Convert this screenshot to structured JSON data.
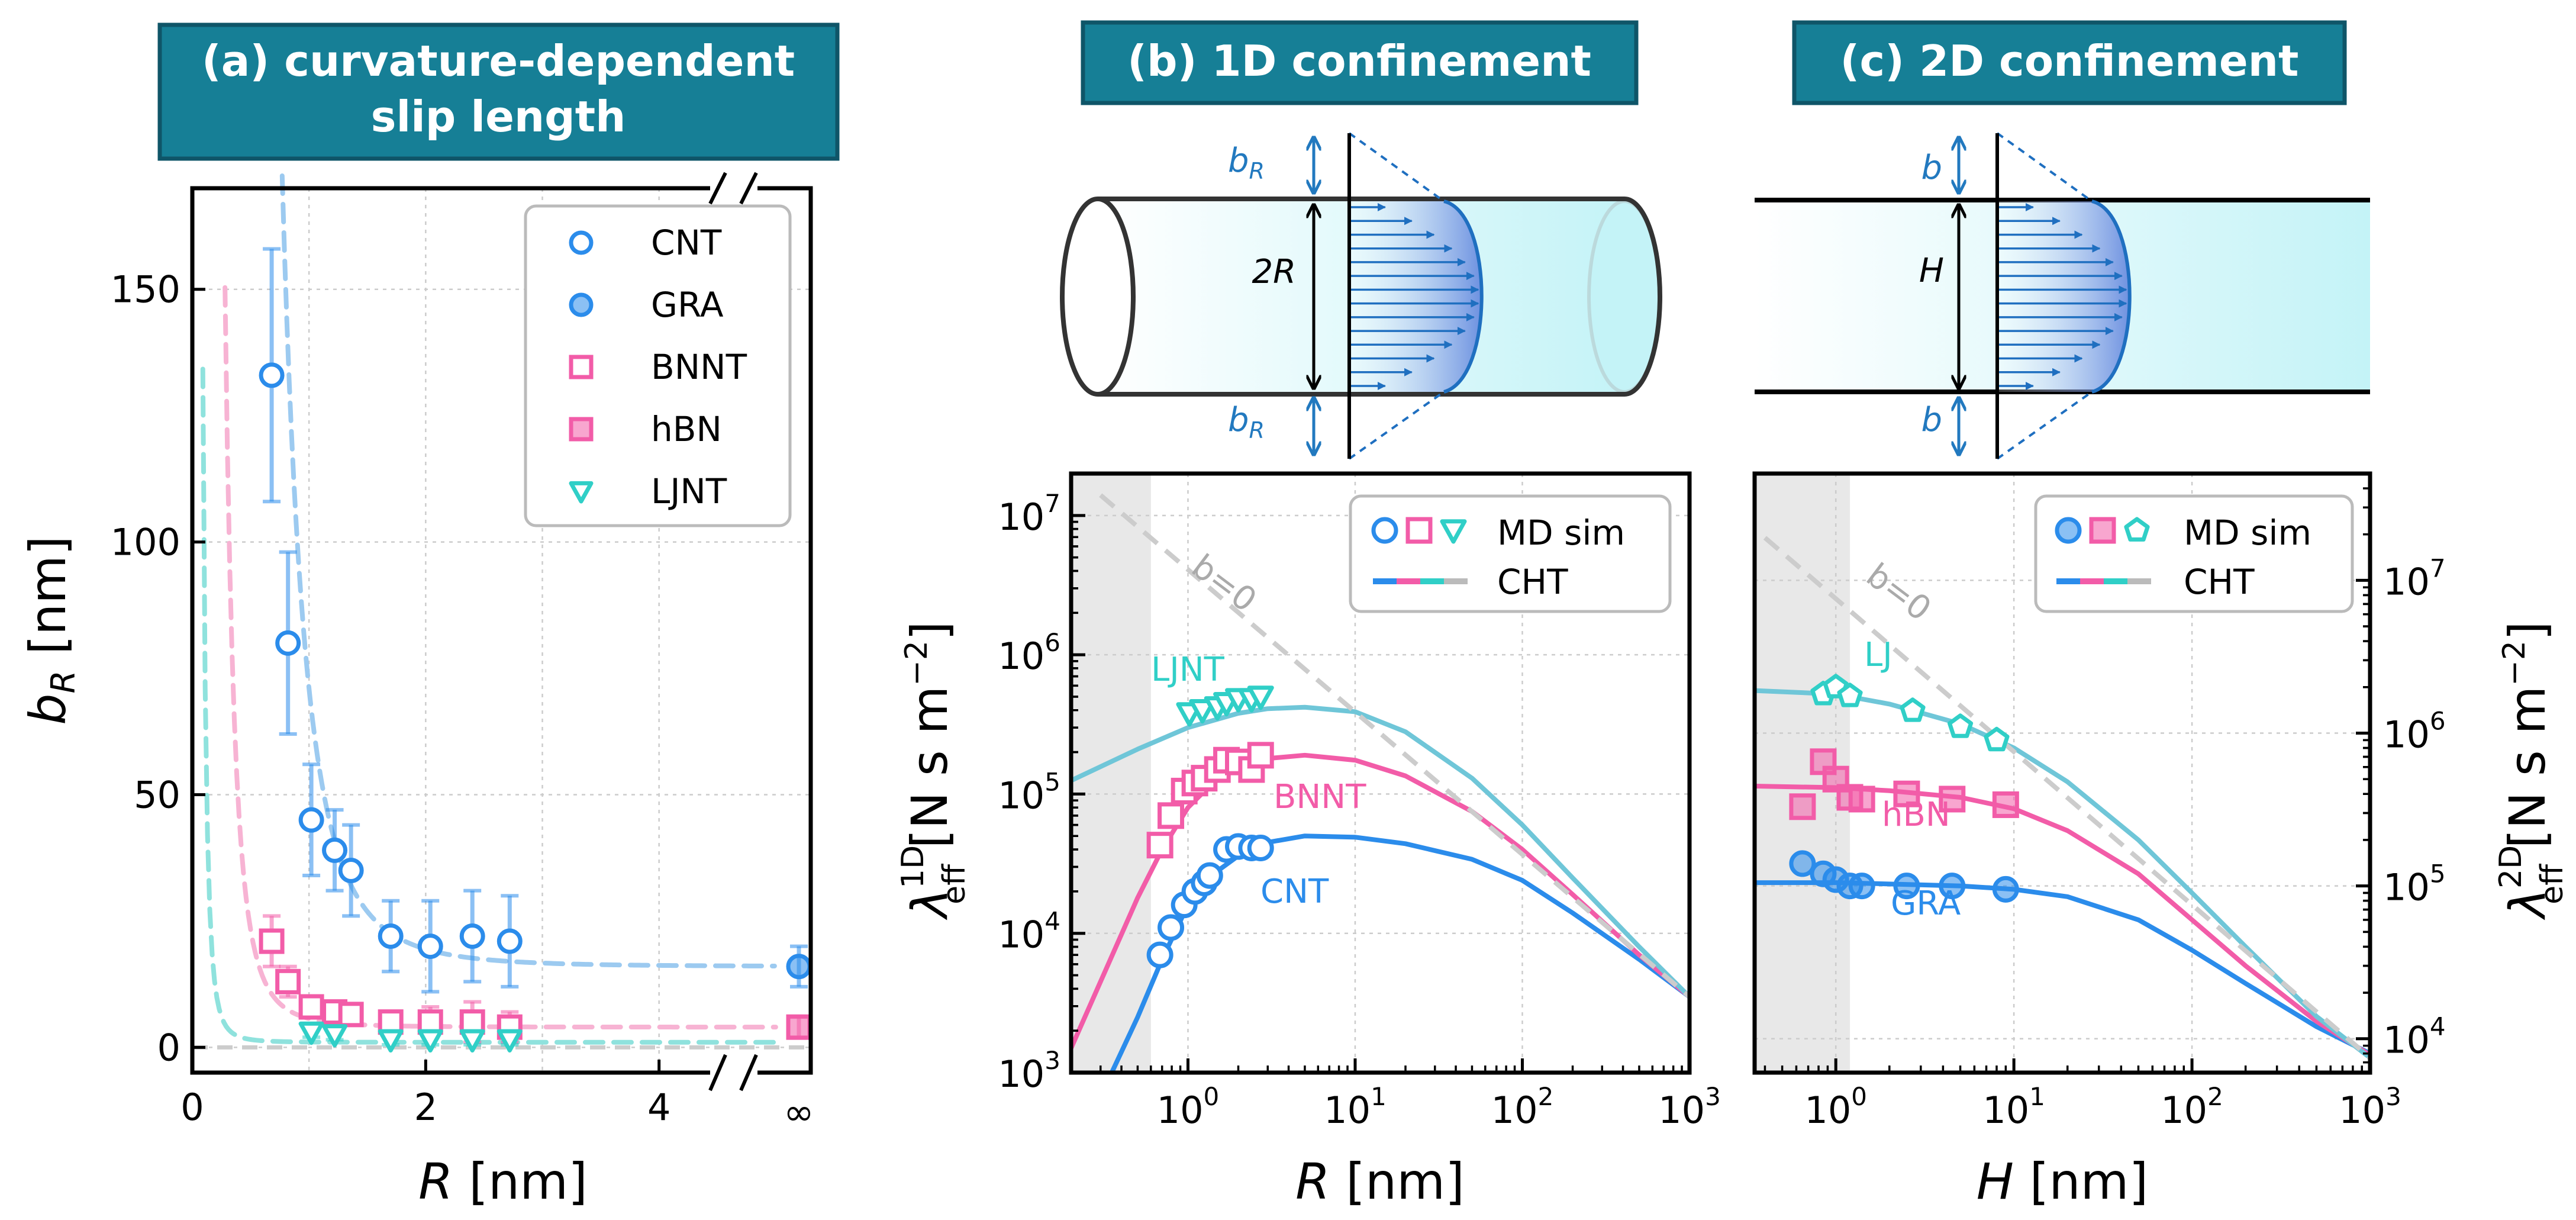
{
  "colors": {
    "cnt": "#2b8ceb",
    "bnnt": "#f25ca8",
    "ljnt": "#30cfc7",
    "gra": "#2b8ceb",
    "hbn": "#f25ca8",
    "lj": "#30cfc7",
    "cnt_fit": "#9ccaf0",
    "bnnt_fit": "#f7b3d3",
    "ljnt_fit": "#8fe2dd",
    "grey": "#cccccc",
    "title_bg": "#167f96",
    "title_border": "#0f5568"
  },
  "panels": {
    "a": {
      "title_line1": "(a) curvature-dependent",
      "title_line2": "slip length",
      "ylabel_main": "b",
      "ylabel_sub": "R",
      "ylabel_unit": " [nm]",
      "xlabel_main": "R",
      "xlabel_unit": " [nm]",
      "xticks": [
        "0",
        "2",
        "4"
      ],
      "infinity": "∞",
      "yticks": [
        "0",
        "50",
        "100",
        "150"
      ],
      "legend": [
        "CNT",
        "GRA",
        "BNNT",
        "hBN",
        "LJNT"
      ]
    },
    "b": {
      "title": "(b) 1D confinement",
      "ylabel": "λ",
      "ylabel_sup": "1D",
      "ylabel_sub": "eff",
      "ylabel_unit": " [N s m",
      "ylabel_exp": "−2",
      "ylabel_close": "]",
      "xlabel_main": "R",
      "xlabel_unit": " [nm]",
      "legend_md": "MD sim",
      "legend_cht": "CHT",
      "ann_b0": "b=0",
      "ann_ljnt": "LJNT",
      "ann_bnnt": "BNNT",
      "ann_cnt": "CNT",
      "schematic": {
        "br_top": "b",
        "br_bot": "b",
        "br_sub": "R",
        "radius": "2R"
      }
    },
    "c": {
      "title": "(c) 2D confinement",
      "ylabel": "λ",
      "ylabel_sup": "2D",
      "ylabel_sub": "eff",
      "ylabel_unit": " [N s m",
      "ylabel_exp": "−2",
      "ylabel_close": "]",
      "xlabel_main": "H",
      "xlabel_unit": " [nm]",
      "legend_md": "MD sim",
      "legend_cht": "CHT",
      "ann_b0": "b=0",
      "ann_lj": "LJ",
      "ann_hbn": "hBN",
      "ann_gra": "GRA",
      "schematic": {
        "b_top": "b",
        "b_bot": "b",
        "height": "H"
      }
    }
  },
  "chart_data": [
    {
      "panel": "a",
      "type": "scatter",
      "title": "(a) curvature-dependent slip length",
      "xlabel": "R [nm]",
      "ylabel": "b_R [nm]",
      "xlim": [
        0,
        5.3
      ],
      "ylim": [
        -5,
        170
      ],
      "xticks": [
        0,
        2,
        4
      ],
      "yticks": [
        0,
        50,
        100,
        150
      ],
      "grid": true,
      "legend_position": "top-right",
      "broken_axis_label": "∞",
      "series": [
        {
          "name": "CNT",
          "marker": "circle-open",
          "x": [
            0.68,
            0.82,
            1.02,
            1.22,
            1.36,
            1.7,
            2.04,
            2.4,
            2.72
          ],
          "y": [
            133,
            80,
            45,
            39,
            35,
            22,
            20,
            22,
            21
          ],
          "yerr": [
            25,
            18,
            11,
            8,
            9,
            7,
            9,
            9,
            9
          ]
        },
        {
          "name": "GRA",
          "marker": "circle-filled",
          "x": [
            "∞"
          ],
          "y": [
            16
          ],
          "yerr": [
            4
          ]
        },
        {
          "name": "BNNT",
          "marker": "square-open",
          "x": [
            0.68,
            0.82,
            1.02,
            1.22,
            1.36,
            1.7,
            2.04,
            2.4,
            2.72
          ],
          "y": [
            21,
            13,
            8,
            7,
            6.5,
            5,
            5,
            5,
            4
          ],
          "yerr": [
            5,
            3,
            2,
            2,
            2,
            2,
            3,
            4,
            3
          ]
        },
        {
          "name": "hBN",
          "marker": "square-filled",
          "x": [
            "∞"
          ],
          "y": [
            4
          ],
          "yerr": [
            2
          ]
        },
        {
          "name": "LJNT",
          "marker": "triangle-down-open",
          "x": [
            1.02,
            1.22,
            1.7,
            2.04,
            2.4,
            2.72
          ],
          "y": [
            3,
            2.5,
            1.5,
            1.5,
            1.5,
            1.5
          ],
          "yerr": [
            1,
            1,
            1,
            1,
            1,
            1
          ]
        }
      ]
    },
    {
      "panel": "b",
      "type": "line",
      "title": "(b) 1D confinement",
      "xlabel": "R [nm]",
      "ylabel": "λ_eff^1D [N s m^-2]",
      "xscale": "log",
      "yscale": "log",
      "xlim": [
        0.2,
        1000
      ],
      "ylim": [
        1000,
        20000000
      ],
      "xticks": [
        "10^0",
        "10^1",
        "10^2",
        "10^3"
      ],
      "yticks": [
        "10^3",
        "10^4",
        "10^5",
        "10^6",
        "10^7"
      ],
      "shaded_region_x": [
        0.2,
        0.6
      ],
      "legend": [
        "MD sim",
        "CHT"
      ],
      "legend_position": "top-right",
      "grid": true,
      "series": [
        {
          "name": "CNT MD sim",
          "marker": "circle-open",
          "x": [
            0.68,
            0.79,
            0.95,
            1.1,
            1.25,
            1.35,
            1.7,
            2.0,
            2.4,
            2.72
          ],
          "y": [
            7000,
            11000,
            16000,
            20000,
            23000,
            26000,
            40000,
            42000,
            41000,
            41000
          ]
        },
        {
          "name": "BNNT MD sim",
          "marker": "square-open",
          "x": [
            0.68,
            0.79,
            0.95,
            1.1,
            1.25,
            1.5,
            1.7,
            2.0,
            2.4,
            2.72
          ],
          "y": [
            43000,
            70000,
            105000,
            120000,
            130000,
            150000,
            175000,
            170000,
            150000,
            190000
          ]
        },
        {
          "name": "LJNT MD sim",
          "marker": "triangle-down-open",
          "x": [
            1.02,
            1.22,
            1.5,
            1.7,
            2.0,
            2.4,
            2.72
          ],
          "y": [
            380000,
            400000,
            420000,
            450000,
            480000,
            480000,
            500000
          ]
        },
        {
          "name": "CNT CHT",
          "x": [
            0.35,
            0.5,
            0.7,
            1,
            1.5,
            2,
            3,
            5,
            10,
            20,
            50,
            100,
            200,
            500,
            1000
          ],
          "y": [
            1000,
            2500,
            6500,
            16000,
            28000,
            36000,
            45000,
            50000,
            49000,
            44000,
            34000,
            24000,
            14000,
            6500,
            3500
          ]
        },
        {
          "name": "BNNT CHT",
          "x": [
            0.2,
            0.3,
            0.5,
            0.7,
            1,
            1.5,
            2,
            3,
            5,
            10,
            20,
            50,
            100,
            200,
            500,
            1000
          ],
          "y": [
            1500,
            4500,
            18000,
            40000,
            80000,
            130000,
            155000,
            180000,
            190000,
            175000,
            135000,
            75000,
            40000,
            19000,
            7000,
            3500
          ]
        },
        {
          "name": "LJNT CHT",
          "x": [
            0.2,
            0.5,
            1,
            2,
            3,
            5,
            10,
            20,
            50,
            100,
            200,
            500,
            1000
          ],
          "y": [
            125000,
            210000,
            300000,
            380000,
            410000,
            420000,
            390000,
            280000,
            130000,
            60000,
            25000,
            8000,
            3500
          ]
        },
        {
          "name": "b=0",
          "style": "dashed",
          "x": [
            0.3,
            1000
          ],
          "y": [
            14000000,
            3500
          ]
        }
      ]
    },
    {
      "panel": "c",
      "type": "line",
      "title": "(c) 2D confinement",
      "xlabel": "H [nm]",
      "ylabel": "λ_eff^2D [N s m^-2]",
      "xscale": "log",
      "yscale": "log",
      "xlim": [
        0.35,
        1000
      ],
      "ylim": [
        6000,
        50000000
      ],
      "xticks": [
        "10^0",
        "10^1",
        "10^2",
        "10^3"
      ],
      "yticks": [
        "10^4",
        "10^5",
        "10^6",
        "10^7"
      ],
      "shaded_region_x": [
        0.35,
        1.2
      ],
      "legend": [
        "MD sim",
        "CHT"
      ],
      "legend_position": "top-right",
      "grid": true,
      "series": [
        {
          "name": "GRA MD sim",
          "marker": "circle-filled",
          "x": [
            0.65,
            0.85,
            1.0,
            1.2,
            1.4,
            2.5,
            4.5,
            9
          ],
          "y": [
            140000,
            120000,
            110000,
            100000,
            100000,
            100000,
            100000,
            95000
          ]
        },
        {
          "name": "hBN MD sim",
          "marker": "square-filled",
          "x": [
            0.65,
            0.85,
            1.0,
            1.2,
            1.4,
            2.5,
            4.5,
            9
          ],
          "y": [
            330000,
            650000,
            500000,
            380000,
            370000,
            400000,
            370000,
            340000
          ]
        },
        {
          "name": "LJ MD sim",
          "marker": "pentagon-open",
          "x": [
            0.85,
            1.0,
            1.2,
            2.7,
            5,
            8
          ],
          "y": [
            1800000,
            2000000,
            1750000,
            1400000,
            1100000,
            900000
          ]
        },
        {
          "name": "GRA CHT",
          "x": [
            0.35,
            1,
            2,
            5,
            10,
            20,
            50,
            100,
            200,
            500,
            1000
          ],
          "y": [
            105000,
            105000,
            103000,
            100000,
            95000,
            85000,
            60000,
            38000,
            23000,
            12000,
            8000
          ]
        },
        {
          "name": "hBN CHT",
          "x": [
            0.35,
            1,
            2,
            5,
            10,
            20,
            50,
            100,
            200,
            500,
            1000
          ],
          "y": [
            450000,
            440000,
            420000,
            380000,
            320000,
            230000,
            120000,
            60000,
            30000,
            13000,
            7800
          ]
        },
        {
          "name": "LJ CHT",
          "x": [
            0.35,
            1,
            2,
            5,
            10,
            20,
            50,
            100,
            200,
            500,
            1000
          ],
          "y": [
            1900000,
            1800000,
            1550000,
            1150000,
            800000,
            480000,
            200000,
            90000,
            40000,
            14000,
            7500
          ]
        },
        {
          "name": "b=0",
          "style": "dashed",
          "x": [
            0.4,
            1000
          ],
          "y": [
            19000000,
            7500
          ]
        }
      ]
    }
  ]
}
